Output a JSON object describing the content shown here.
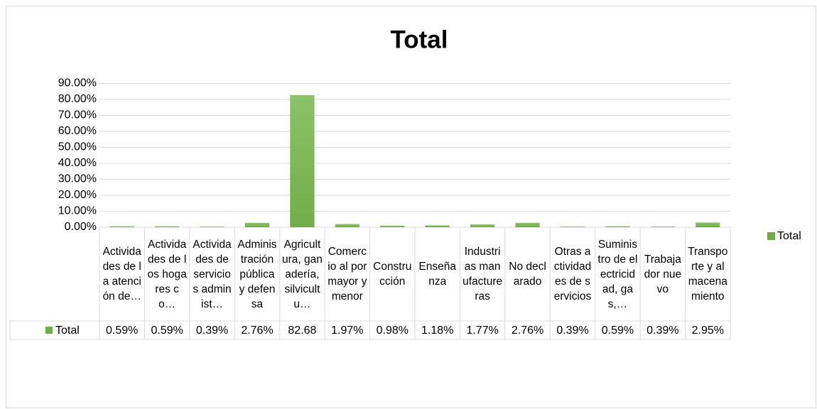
{
  "chart_data": {
    "type": "bar",
    "title": "Total",
    "categories": [
      "Actividades de la atención de…",
      "Actividades de los hogares co…",
      "Actividades de servicios administ…",
      "Administración pública y defensa",
      "Agricultura, ganadería, silvicultu…",
      "Comercio al por mayor y menor",
      "Construcción",
      "Enseñanza",
      "Industrias manufactureras",
      "No declarado",
      "Otras actividades de servicios",
      "Suministro de electricidad, gas,…",
      "Trabajador nuevo",
      "Transporte y almacenamiento"
    ],
    "series": [
      {
        "name": "Total",
        "color": "#70ad47",
        "values": [
          0.59,
          0.59,
          0.39,
          2.76,
          82.68,
          1.97,
          0.98,
          1.18,
          1.77,
          2.76,
          0.39,
          0.59,
          0.39,
          2.95
        ],
        "value_labels": [
          "0.59%",
          "0.59%",
          "0.39%",
          "2.76%",
          "82.68",
          "1.97%",
          "0.98%",
          "1.18%",
          "1.77%",
          "2.76%",
          "0.39%",
          "0.59%",
          "0.39%",
          "2.95%"
        ]
      }
    ],
    "ylim": [
      0,
      90
    ],
    "yticks": [
      {
        "value": 0,
        "label": "0.00%"
      },
      {
        "value": 10,
        "label": "10.00%"
      },
      {
        "value": 20,
        "label": "20.00%"
      },
      {
        "value": 30,
        "label": "30.00%"
      },
      {
        "value": 40,
        "label": "40.00%"
      },
      {
        "value": 50,
        "label": "50.00%"
      },
      {
        "value": 60,
        "label": "60.00%"
      },
      {
        "value": 70,
        "label": "70.00%"
      },
      {
        "value": 80,
        "label": "80.00%"
      },
      {
        "value": 90,
        "label": "90.00%"
      }
    ],
    "grid": true,
    "legend": "right",
    "data_table": true
  }
}
